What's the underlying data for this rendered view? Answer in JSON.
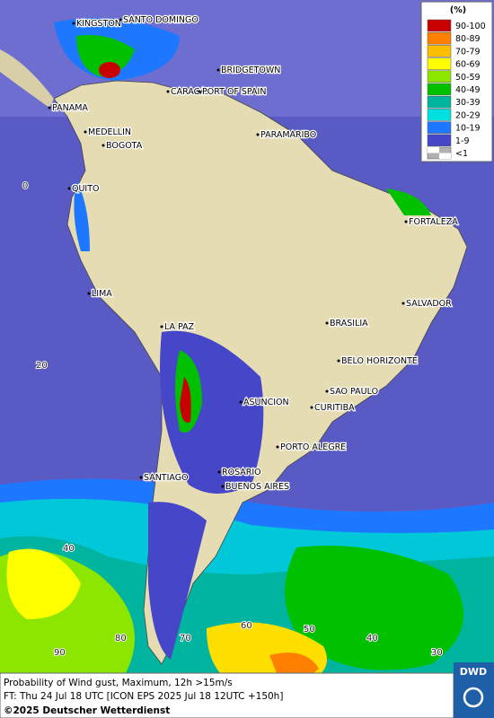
{
  "legend": {
    "unit": "(%)",
    "entries": [
      {
        "label": "90-100",
        "color": "#c80000"
      },
      {
        "label": "80-89",
        "color": "#ff7f00"
      },
      {
        "label": "70-79",
        "color": "#ffbf00"
      },
      {
        "label": "60-69",
        "color": "#ffff00"
      },
      {
        "label": "50-59",
        "color": "#8ce600"
      },
      {
        "label": "40-49",
        "color": "#00c000"
      },
      {
        "label": "30-39",
        "color": "#00b4a0"
      },
      {
        "label": "20-29",
        "color": "#00e0e0"
      },
      {
        "label": "10-19",
        "color": "#1e78ff"
      },
      {
        "label": "1-9",
        "color": "#4646c8"
      },
      {
        "label": "<1",
        "color": "#b0b0b0"
      }
    ]
  },
  "cities": [
    "KINGSTON",
    "SANTO DOMINGO",
    "BRIDGETOWN",
    "CARACAS",
    "PORT OF SPAIN",
    "PANAMA",
    "MEDELLIN",
    "BOGOTA",
    "PARAMARIBO",
    "QUITO",
    "FORTALEZA",
    "LIMA",
    "SALVADOR",
    "BRASILIA",
    "LA PAZ",
    "BELO HORIZONTE",
    "SAO PAULO",
    "ASUNCION",
    "CURITIBA",
    "PORTO ALEGRE",
    "ROSARIO",
    "SANTIAGO",
    "BUENOS AIRES"
  ],
  "grid_labels": [
    "0",
    "20",
    "40",
    "90",
    "80",
    "70",
    "60",
    "50",
    "40",
    "30"
  ],
  "footer": {
    "line1": "Probability of Wind gust, Maximum, 12h >15m/s",
    "line2": "FT: Thu 24 Jul 18 UTC [ICON EPS 2025 Jul 18 12UTC +150h]",
    "line3": "©2025 Deutscher Wetterdienst"
  },
  "logo": "DWD"
}
